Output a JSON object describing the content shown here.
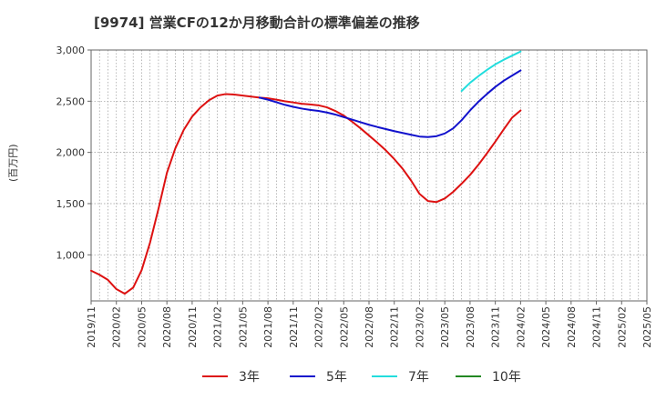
{
  "chart_data": {
    "type": "line",
    "title": "[9974]  営業CFの12か月移動合計の標準偏差の推移",
    "ylabel": "(百万円)",
    "xlabel": "",
    "ylim": [
      550,
      3000
    ],
    "yticks": [
      1000,
      1500,
      2000,
      2500,
      3000
    ],
    "ytick_labels": [
      "1,000",
      "1,500",
      "2,000",
      "2,500",
      "3,000"
    ],
    "x_range": [
      "2019-11",
      "2025-05"
    ],
    "xtick_labels": [
      "2019/11",
      "2020/02",
      "2020/05",
      "2020/08",
      "2020/11",
      "2021/02",
      "2021/05",
      "2021/08",
      "2021/11",
      "2022/02",
      "2022/05",
      "2022/08",
      "2022/11",
      "2023/02",
      "2023/05",
      "2023/08",
      "2023/11",
      "2024/02",
      "2024/05",
      "2024/08",
      "2024/11",
      "2025/02",
      "2025/05"
    ],
    "grid": true,
    "legend_position": "bottom",
    "series": [
      {
        "name": "3年",
        "color": "#dd1111",
        "points": [
          [
            "2019-11",
            845
          ],
          [
            "2019-12",
            805
          ],
          [
            "2020-01",
            755
          ],
          [
            "2020-02",
            665
          ],
          [
            "2020-03",
            620
          ],
          [
            "2020-04",
            680
          ],
          [
            "2020-05",
            850
          ],
          [
            "2020-06",
            1120
          ],
          [
            "2020-07",
            1450
          ],
          [
            "2020-08",
            1800
          ],
          [
            "2020-09",
            2040
          ],
          [
            "2020-10",
            2220
          ],
          [
            "2020-11",
            2350
          ],
          [
            "2020-12",
            2440
          ],
          [
            "2021-01",
            2510
          ],
          [
            "2021-02",
            2555
          ],
          [
            "2021-03",
            2570
          ],
          [
            "2021-04",
            2565
          ],
          [
            "2021-05",
            2555
          ],
          [
            "2021-06",
            2545
          ],
          [
            "2021-07",
            2535
          ],
          [
            "2021-08",
            2528
          ],
          [
            "2021-09",
            2515
          ],
          [
            "2021-10",
            2500
          ],
          [
            "2021-11",
            2488
          ],
          [
            "2021-12",
            2475
          ],
          [
            "2022-01",
            2468
          ],
          [
            "2022-02",
            2460
          ],
          [
            "2022-03",
            2440
          ],
          [
            "2022-04",
            2405
          ],
          [
            "2022-05",
            2360
          ],
          [
            "2022-06",
            2300
          ],
          [
            "2022-07",
            2235
          ],
          [
            "2022-08",
            2165
          ],
          [
            "2022-09",
            2095
          ],
          [
            "2022-10",
            2020
          ],
          [
            "2022-11",
            1935
          ],
          [
            "2022-12",
            1840
          ],
          [
            "2023-01",
            1725
          ],
          [
            "2023-02",
            1595
          ],
          [
            "2023-03",
            1525
          ],
          [
            "2023-04",
            1515
          ],
          [
            "2023-05",
            1550
          ],
          [
            "2023-06",
            1615
          ],
          [
            "2023-07",
            1695
          ],
          [
            "2023-08",
            1780
          ],
          [
            "2023-09",
            1880
          ],
          [
            "2023-10",
            1990
          ],
          [
            "2023-11",
            2105
          ],
          [
            "2023-12",
            2225
          ],
          [
            "2024-01",
            2340
          ],
          [
            "2024-02",
            2410
          ]
        ]
      },
      {
        "name": "5年",
        "color": "#1111cc",
        "points": [
          [
            "2021-07",
            2535
          ],
          [
            "2021-08",
            2515
          ],
          [
            "2021-09",
            2490
          ],
          [
            "2021-10",
            2465
          ],
          [
            "2021-11",
            2445
          ],
          [
            "2021-12",
            2428
          ],
          [
            "2022-01",
            2415
          ],
          [
            "2022-02",
            2405
          ],
          [
            "2022-03",
            2390
          ],
          [
            "2022-04",
            2370
          ],
          [
            "2022-05",
            2345
          ],
          [
            "2022-06",
            2320
          ],
          [
            "2022-07",
            2295
          ],
          [
            "2022-08",
            2270
          ],
          [
            "2022-09",
            2248
          ],
          [
            "2022-10",
            2228
          ],
          [
            "2022-11",
            2208
          ],
          [
            "2022-12",
            2190
          ],
          [
            "2023-01",
            2172
          ],
          [
            "2023-02",
            2155
          ],
          [
            "2023-03",
            2150
          ],
          [
            "2023-04",
            2158
          ],
          [
            "2023-05",
            2185
          ],
          [
            "2023-06",
            2235
          ],
          [
            "2023-07",
            2315
          ],
          [
            "2023-08",
            2410
          ],
          [
            "2023-09",
            2495
          ],
          [
            "2023-10",
            2570
          ],
          [
            "2023-11",
            2640
          ],
          [
            "2023-12",
            2700
          ],
          [
            "2024-01",
            2750
          ],
          [
            "2024-02",
            2800
          ]
        ]
      },
      {
        "name": "7年",
        "color": "#22dddd",
        "points": [
          [
            "2023-07",
            2600
          ],
          [
            "2023-08",
            2680
          ],
          [
            "2023-09",
            2745
          ],
          [
            "2023-10",
            2805
          ],
          [
            "2023-11",
            2860
          ],
          [
            "2023-12",
            2905
          ],
          [
            "2024-01",
            2945
          ],
          [
            "2024-02",
            2985
          ]
        ]
      },
      {
        "name": "10年",
        "color": "#228822",
        "points": []
      }
    ]
  }
}
